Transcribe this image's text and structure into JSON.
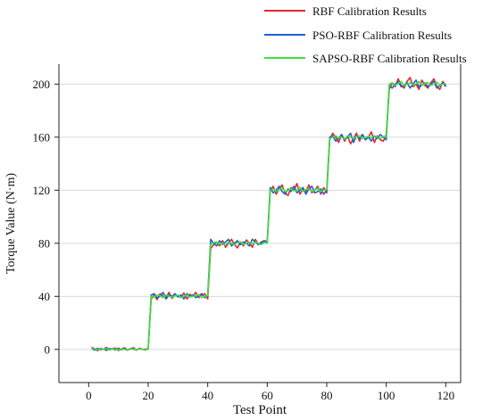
{
  "chart_data": {
    "type": "line",
    "xlabel": "Test Point",
    "ylabel": "Torque Value (N·m)",
    "xlim": [
      -10,
      125
    ],
    "ylim": [
      -25,
      215
    ],
    "xticks": [
      0,
      20,
      40,
      60,
      80,
      100,
      120
    ],
    "yticks": [
      0,
      40,
      80,
      120,
      160,
      200
    ],
    "grid": "horizontal",
    "legend_position": "top-right",
    "x": [
      1,
      2,
      3,
      4,
      5,
      6,
      7,
      8,
      9,
      10,
      11,
      12,
      13,
      14,
      15,
      16,
      17,
      18,
      19,
      20,
      21,
      22,
      23,
      24,
      25,
      26,
      27,
      28,
      29,
      30,
      31,
      32,
      33,
      34,
      35,
      36,
      37,
      38,
      39,
      40,
      41,
      42,
      43,
      44,
      45,
      46,
      47,
      48,
      49,
      50,
      51,
      52,
      53,
      54,
      55,
      56,
      57,
      58,
      59,
      60,
      61,
      62,
      63,
      64,
      65,
      66,
      67,
      68,
      69,
      70,
      71,
      72,
      73,
      74,
      75,
      76,
      77,
      78,
      79,
      80,
      81,
      82,
      83,
      84,
      85,
      86,
      87,
      88,
      89,
      90,
      91,
      92,
      93,
      94,
      95,
      96,
      97,
      98,
      99,
      100,
      101,
      102,
      103,
      104,
      105,
      106,
      107,
      108,
      109,
      110,
      111,
      112,
      113,
      114,
      115,
      116,
      117,
      118,
      119,
      120
    ],
    "series": [
      {
        "name": "RBF Calibration Results",
        "color": "#e8262b",
        "values": [
          1.5,
          0.5,
          -1,
          0.8,
          0,
          1.5,
          -0.5,
          0.6,
          1,
          -0.8,
          0.4,
          1.2,
          -0.3,
          0.2,
          1.3,
          -0.6,
          0.8,
          0.2,
          -0.4,
          0.3,
          38,
          41,
          37.5,
          42,
          40,
          39,
          43,
          38.5,
          41,
          40.5,
          39,
          42.5,
          38,
          41.5,
          40,
          43,
          39,
          41,
          42,
          38,
          76,
          79,
          81,
          78,
          82,
          77,
          80,
          83,
          79,
          76.5,
          81,
          78,
          82.5,
          80,
          77,
          83,
          79,
          81,
          82,
          80.5,
          119,
          123,
          117,
          121,
          124,
          118,
          116,
          122,
          120,
          125,
          117,
          121,
          119,
          124,
          118,
          120,
          123,
          117,
          122,
          118,
          158,
          163,
          160,
          156,
          162,
          157,
          161,
          155,
          159,
          163,
          157,
          162,
          158,
          160,
          164,
          156,
          161,
          158,
          157,
          162,
          196,
          201,
          198,
          204,
          199,
          197,
          202,
          205,
          198,
          200,
          196,
          203,
          199,
          197,
          201,
          204,
          198,
          196,
          202,
          199
        ]
      },
      {
        "name": "PSO-RBF Calibration Results",
        "color": "#1f5fd6",
        "values": [
          0.5,
          -0.5,
          0.8,
          -0.3,
          0.2,
          -0.8,
          0.6,
          0.3,
          -0.4,
          0.9,
          -0.2,
          0.4,
          -0.6,
          0.7,
          0.1,
          -0.3,
          0.5,
          -0.1,
          0.2,
          0.4,
          41,
          42,
          39,
          40,
          43,
          38,
          41,
          40,
          42,
          39.5,
          41,
          38,
          42,
          40,
          41,
          39,
          40.5,
          42,
          39,
          41,
          83,
          80,
          78,
          82,
          79,
          81,
          83,
          78,
          80,
          82,
          79,
          81,
          80,
          78,
          83,
          81,
          79,
          80,
          82,
          81,
          122,
          118,
          120,
          123,
          119,
          117,
          121,
          119,
          123,
          118,
          120,
          122,
          117,
          121,
          123,
          118,
          119,
          121,
          117,
          120,
          160,
          161,
          157,
          159,
          162,
          158,
          160,
          163,
          156,
          161,
          159,
          162,
          158,
          160,
          157,
          161,
          159,
          162,
          160,
          158,
          199,
          197,
          200,
          202,
          198,
          199,
          201,
          197,
          200,
          203,
          198,
          199,
          201,
          198,
          200,
          202,
          197,
          199,
          201,
          198
        ]
      },
      {
        "name": "SAPSO-RBF Calibration Results",
        "color": "#3fe03f",
        "values": [
          0.2,
          0.6,
          -0.2,
          0.4,
          0,
          0.5,
          -0.3,
          0.3,
          0.2,
          -0.2,
          0.4,
          0,
          -0.3,
          0.5,
          0.1,
          -0.2,
          0.3,
          0,
          0.2,
          0.1,
          40,
          39.5,
          41,
          40.5,
          39,
          41,
          40,
          39.5,
          40.5,
          41,
          39,
          40,
          41,
          39.5,
          40,
          40.5,
          41,
          39,
          40,
          40.5,
          79,
          80.5,
          81,
          79.5,
          80,
          78.5,
          81,
          80,
          79,
          80.5,
          81,
          79,
          80,
          80.5,
          79.5,
          81,
          80,
          79,
          80.5,
          80,
          120,
          121,
          119,
          120.5,
          122,
          119,
          120,
          121,
          119.5,
          120,
          122,
          119,
          120.5,
          121,
          119,
          120,
          121.5,
          119,
          120,
          120.5,
          159,
          160,
          161,
          159.5,
          160,
          158.5,
          161,
          160,
          159,
          160.5,
          161,
          159,
          160,
          160.5,
          159.5,
          161,
          160,
          159,
          160.5,
          160,
          200,
          201,
          199,
          200.5,
          202,
          199,
          200,
          201,
          199.5,
          200,
          202,
          199,
          200.5,
          201,
          199,
          200,
          201.5,
          199,
          200,
          200.5
        ]
      }
    ]
  }
}
